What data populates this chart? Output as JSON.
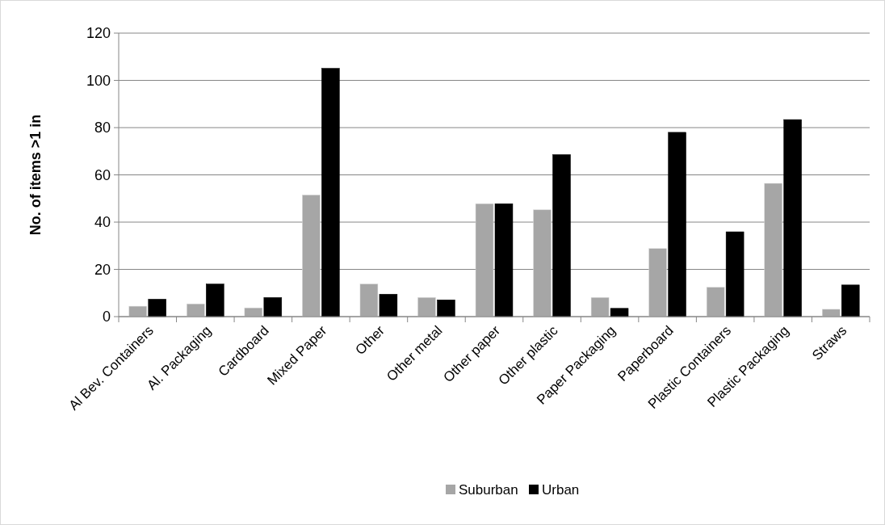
{
  "chart_data": {
    "type": "bar",
    "ylabel": "No. of items >1 in",
    "categories": [
      "Al Bev. Containers",
      "Al. Packaging",
      "Cardboard",
      "Mixed Paper",
      "Other",
      "Other metal",
      "Other paper",
      "Other plastic",
      "Paper Packaging",
      "Paperboard",
      "Plastic Containers",
      "Plastic Packaging",
      "Straws"
    ],
    "series": [
      {
        "name": "Suburban",
        "color": "#a6a6a6",
        "values": [
          4.4,
          5.4,
          3.7,
          51.5,
          13.8,
          8.1,
          47.8,
          45.2,
          8.1,
          28.8,
          12.4,
          56.4,
          3.1
        ]
      },
      {
        "name": "Urban",
        "color": "#000000",
        "values": [
          7.4,
          13.8,
          8.1,
          105.1,
          9.5,
          7.1,
          47.8,
          68.6,
          3.5,
          78.0,
          35.9,
          83.4,
          13.4
        ]
      }
    ],
    "ylim": [
      0,
      120
    ],
    "yticks": [
      0,
      20,
      40,
      60,
      80,
      100,
      120
    ],
    "grid": "y",
    "legend": "bottom"
  }
}
